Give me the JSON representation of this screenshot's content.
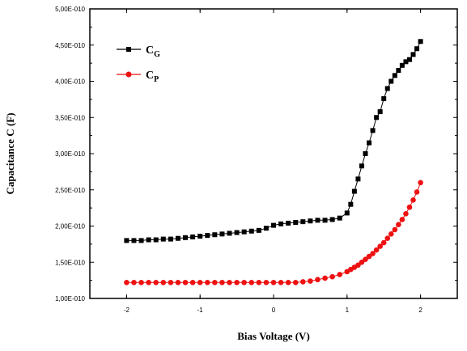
{
  "chart_data": {
    "type": "scatter",
    "xlabel": "Bias Voltage (V)",
    "ylabel": "Capacitance C (F)",
    "xlim": [
      -2.5,
      2.5
    ],
    "ylim": [
      1e-10,
      5e-10
    ],
    "x_ticks": [
      {
        "value": -2,
        "label": "-2"
      },
      {
        "value": -1,
        "label": "-1"
      },
      {
        "value": 0,
        "label": "0"
      },
      {
        "value": 1,
        "label": "1"
      },
      {
        "value": 2,
        "label": "2"
      }
    ],
    "y_ticks": [
      {
        "value": 1e-10,
        "label": "1,00E-010"
      },
      {
        "value": 1.5e-10,
        "label": "1,50E-010"
      },
      {
        "value": 2e-10,
        "label": "2,00E-010"
      },
      {
        "value": 2.5e-10,
        "label": "2,50E-010"
      },
      {
        "value": 3e-10,
        "label": "3,00E-010"
      },
      {
        "value": 3.5e-10,
        "label": "3,50E-010"
      },
      {
        "value": 4e-10,
        "label": "4,00E-010"
      },
      {
        "value": 4.5e-10,
        "label": "4,50E-010"
      },
      {
        "value": 5e-10,
        "label": "5,00E-010"
      }
    ],
    "grid": false,
    "legend_position": "top-left",
    "series": [
      {
        "name": "CG",
        "legend_main": "C",
        "legend_sub": "G",
        "color": "#000000",
        "marker": "square",
        "x": [
          -2.0,
          -1.9,
          -1.8,
          -1.7,
          -1.6,
          -1.5,
          -1.4,
          -1.3,
          -1.2,
          -1.1,
          -1.0,
          -0.9,
          -0.8,
          -0.7,
          -0.6,
          -0.5,
          -0.4,
          -0.3,
          -0.2,
          -0.1,
          0.0,
          0.1,
          0.2,
          0.3,
          0.4,
          0.5,
          0.6,
          0.7,
          0.8,
          0.9,
          1.0,
          1.05,
          1.1,
          1.15,
          1.2,
          1.25,
          1.3,
          1.35,
          1.4,
          1.45,
          1.5,
          1.55,
          1.6,
          1.65,
          1.7,
          1.75,
          1.8,
          1.85,
          1.9,
          1.95,
          2.0
        ],
        "y": [
          1.8e-10,
          1.8e-10,
          1.8e-10,
          1.81e-10,
          1.81e-10,
          1.82e-10,
          1.82e-10,
          1.83e-10,
          1.84e-10,
          1.85e-10,
          1.86e-10,
          1.87e-10,
          1.88e-10,
          1.89e-10,
          1.9e-10,
          1.91e-10,
          1.92e-10,
          1.93e-10,
          1.94e-10,
          1.97e-10,
          2.01e-10,
          2.03e-10,
          2.04e-10,
          2.05e-10,
          2.06e-10,
          2.07e-10,
          2.08e-10,
          2.08e-10,
          2.09e-10,
          2.11e-10,
          2.18e-10,
          2.3e-10,
          2.48e-10,
          2.65e-10,
          2.83e-10,
          3e-10,
          3.15e-10,
          3.32e-10,
          3.5e-10,
          3.58e-10,
          3.76e-10,
          3.9e-10,
          4e-10,
          4.08e-10,
          4.15e-10,
          4.22e-10,
          4.27e-10,
          4.3e-10,
          4.37e-10,
          4.45e-10,
          4.55e-10
        ]
      },
      {
        "name": "CP",
        "legend_main": "C",
        "legend_sub": "P",
        "color": "#ee1111",
        "marker": "circle",
        "x": [
          -2.0,
          -1.9,
          -1.8,
          -1.7,
          -1.6,
          -1.5,
          -1.4,
          -1.3,
          -1.2,
          -1.1,
          -1.0,
          -0.9,
          -0.8,
          -0.7,
          -0.6,
          -0.5,
          -0.4,
          -0.3,
          -0.2,
          -0.1,
          0.0,
          0.1,
          0.2,
          0.3,
          0.4,
          0.5,
          0.6,
          0.7,
          0.8,
          0.9,
          1.0,
          1.05,
          1.1,
          1.15,
          1.2,
          1.25,
          1.3,
          1.35,
          1.4,
          1.45,
          1.5,
          1.55,
          1.6,
          1.65,
          1.7,
          1.75,
          1.8,
          1.85,
          1.9,
          1.95,
          2.0
        ],
        "y": [
          1.22e-10,
          1.22e-10,
          1.22e-10,
          1.22e-10,
          1.22e-10,
          1.22e-10,
          1.22e-10,
          1.22e-10,
          1.22e-10,
          1.22e-10,
          1.22e-10,
          1.22e-10,
          1.22e-10,
          1.22e-10,
          1.22e-10,
          1.22e-10,
          1.22e-10,
          1.22e-10,
          1.22e-10,
          1.22e-10,
          1.22e-10,
          1.22e-10,
          1.22e-10,
          1.22e-10,
          1.23e-10,
          1.24e-10,
          1.26e-10,
          1.28e-10,
          1.3e-10,
          1.33e-10,
          1.37e-10,
          1.4e-10,
          1.43e-10,
          1.46e-10,
          1.5e-10,
          1.54e-10,
          1.58e-10,
          1.62e-10,
          1.67e-10,
          1.72e-10,
          1.77e-10,
          1.83e-10,
          1.89e-10,
          1.95e-10,
          2.02e-10,
          2.09e-10,
          2.17e-10,
          2.26e-10,
          2.36e-10,
          2.47e-10,
          2.6e-10
        ]
      }
    ]
  }
}
